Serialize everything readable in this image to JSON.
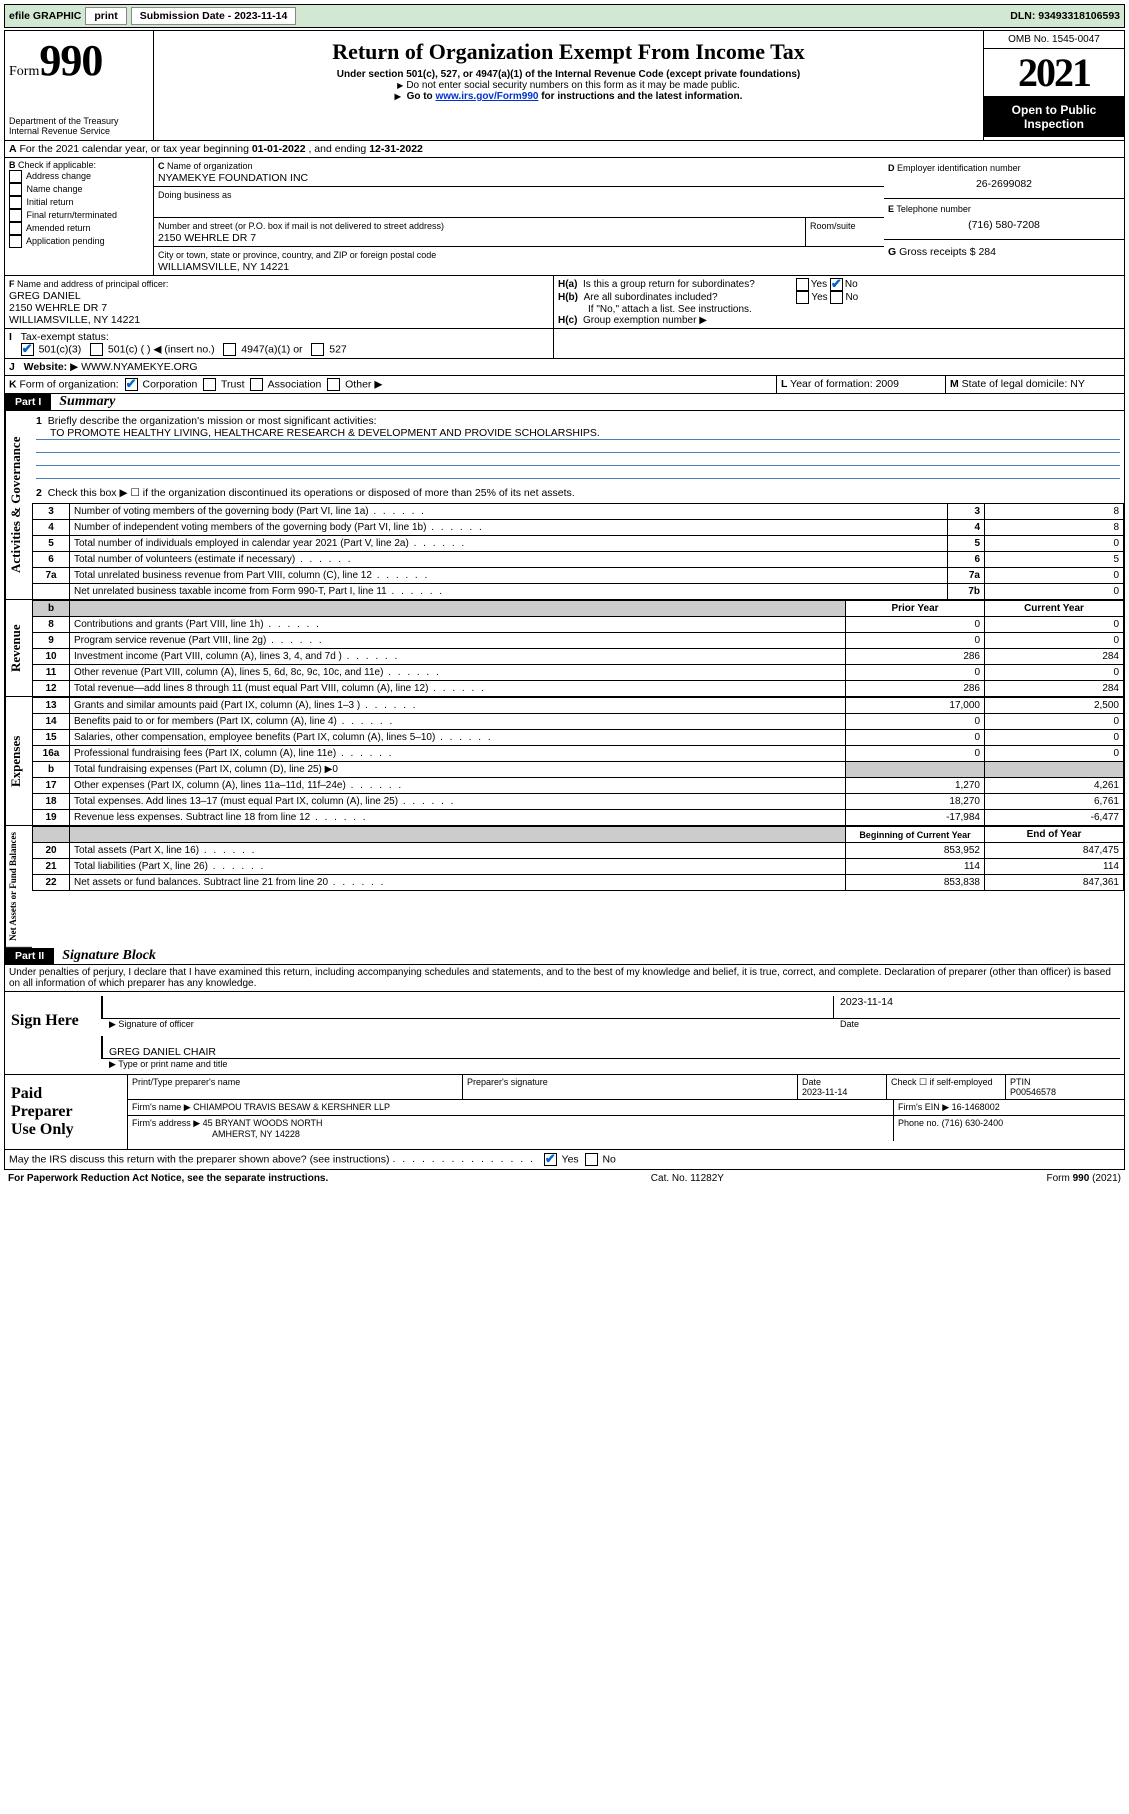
{
  "topbar": {
    "efile": "efile GRAPHIC",
    "print": "print",
    "sub_label": "Submission Date - 2023-11-14",
    "dln": "DLN: 93493318106593"
  },
  "header": {
    "form_word": "Form",
    "form_num": "990",
    "dept": "Department of the Treasury",
    "irs": "Internal Revenue Service",
    "title": "Return of Organization Exempt From Income Tax",
    "sub1": "Under section 501(c), 527, or 4947(a)(1) of the Internal Revenue Code (except private foundations)",
    "sub2": "Do not enter social security numbers on this form as it may be made public.",
    "sub3_pre": "Go to ",
    "sub3_link": "www.irs.gov/Form990",
    "sub3_post": " for instructions and the latest information.",
    "omb": "OMB No. 1545-0047",
    "year": "2021",
    "inspect1": "Open to Public",
    "inspect2": "Inspection"
  },
  "A": {
    "text_pre": "For the 2021 calendar year, or tax year beginning ",
    "begin": "01-01-2022",
    "mid": " , and ending ",
    "end": "12-31-2022"
  },
  "B": {
    "label": "Check if applicable:",
    "items": [
      "Address change",
      "Name change",
      "Initial return",
      "Final return/terminated",
      "Amended return",
      "Application pending"
    ]
  },
  "C": {
    "name_lbl": "Name of organization",
    "name": "NYAMEKYE FOUNDATION INC",
    "dba_lbl": "Doing business as",
    "street_lbl": "Number and street (or P.O. box if mail is not delivered to street address)",
    "room_lbl": "Room/suite",
    "street": "2150 WEHRLE DR 7",
    "city_lbl": "City or town, state or province, country, and ZIP or foreign postal code",
    "city": "WILLIAMSVILLE, NY  14221"
  },
  "D": {
    "lbl": "Employer identification number",
    "val": "26-2699082"
  },
  "E": {
    "lbl": "Telephone number",
    "val": "(716) 580-7208"
  },
  "G": {
    "lbl": "Gross receipts $",
    "val": "284"
  },
  "F": {
    "lbl": "Name and address of principal officer:",
    "name": "GREG DANIEL",
    "street": "2150 WEHRLE DR 7",
    "city": "WILLIAMSVILLE, NY  14221"
  },
  "H": {
    "a": "Is this a group return for subordinates?",
    "b": "Are all subordinates included?",
    "note": "If \"No,\" attach a list. See instructions.",
    "c": "Group exemption number"
  },
  "I": {
    "lbl": "Tax-exempt status:",
    "opts": [
      "501(c)(3)",
      "501(c) (  ) ◀ (insert no.)",
      "4947(a)(1) or",
      "527"
    ]
  },
  "J": {
    "lbl": "Website:",
    "val": "WWW.NYAMEKYE.ORG"
  },
  "K": {
    "lbl": "Form of organization:",
    "corp": "Corporation",
    "trust": "Trust",
    "assoc": "Association",
    "other": "Other"
  },
  "L": {
    "lbl": "Year of formation:",
    "val": "2009"
  },
  "M": {
    "lbl": "State of legal domicile:",
    "val": "NY"
  },
  "partI": {
    "hdr": "Part I",
    "title": "Summary",
    "q1_lbl": "Briefly describe the organization's mission or most significant activities:",
    "q1_val": "TO PROMOTE HEALTHY LIVING, HEALTHCARE RESEARCH & DEVELOPMENT AND PROVIDE SCHOLARSHIPS.",
    "q2": "Check this box ▶ ☐  if the organization discontinued its operations or disposed of more than 25% of its net assets.",
    "gov_rows": [
      {
        "n": "3",
        "t": "Number of voting members of the governing body (Part VI, line 1a)",
        "l": "3",
        "v": "8"
      },
      {
        "n": "4",
        "t": "Number of independent voting members of the governing body (Part VI, line 1b)",
        "l": "4",
        "v": "8"
      },
      {
        "n": "5",
        "t": "Total number of individuals employed in calendar year 2021 (Part V, line 2a)",
        "l": "5",
        "v": "0"
      },
      {
        "n": "6",
        "t": "Total number of volunteers (estimate if necessary)",
        "l": "6",
        "v": "5"
      },
      {
        "n": "7a",
        "t": "Total unrelated business revenue from Part VIII, column (C), line 12",
        "l": "7a",
        "v": "0"
      },
      {
        "n": "",
        "t": "Net unrelated business taxable income from Form 990-T, Part I, line 11",
        "l": "7b",
        "v": "0"
      }
    ],
    "col_prior": "Prior Year",
    "col_current": "Current Year",
    "rev_rows": [
      {
        "n": "8",
        "t": "Contributions and grants (Part VIII, line 1h)",
        "p": "0",
        "c": "0"
      },
      {
        "n": "9",
        "t": "Program service revenue (Part VIII, line 2g)",
        "p": "0",
        "c": "0"
      },
      {
        "n": "10",
        "t": "Investment income (Part VIII, column (A), lines 3, 4, and 7d )",
        "p": "286",
        "c": "284"
      },
      {
        "n": "11",
        "t": "Other revenue (Part VIII, column (A), lines 5, 6d, 8c, 9c, 10c, and 11e)",
        "p": "0",
        "c": "0"
      },
      {
        "n": "12",
        "t": "Total revenue—add lines 8 through 11 (must equal Part VIII, column (A), line 12)",
        "p": "286",
        "c": "284"
      }
    ],
    "exp_rows": [
      {
        "n": "13",
        "t": "Grants and similar amounts paid (Part IX, column (A), lines 1–3 )",
        "p": "17,000",
        "c": "2,500"
      },
      {
        "n": "14",
        "t": "Benefits paid to or for members (Part IX, column (A), line 4)",
        "p": "0",
        "c": "0"
      },
      {
        "n": "15",
        "t": "Salaries, other compensation, employee benefits (Part IX, column (A), lines 5–10)",
        "p": "0",
        "c": "0"
      },
      {
        "n": "16a",
        "t": "Professional fundraising fees (Part IX, column (A), line 11e)",
        "p": "0",
        "c": "0"
      },
      {
        "n": "b",
        "t": "Total fundraising expenses (Part IX, column (D), line 25) ▶0",
        "p": "",
        "c": "",
        "shade": true
      },
      {
        "n": "17",
        "t": "Other expenses (Part IX, column (A), lines 11a–11d, 11f–24e)",
        "p": "1,270",
        "c": "4,261"
      },
      {
        "n": "18",
        "t": "Total expenses. Add lines 13–17 (must equal Part IX, column (A), line 25)",
        "p": "18,270",
        "c": "6,761"
      },
      {
        "n": "19",
        "t": "Revenue less expenses. Subtract line 18 from line 12",
        "p": "-17,984",
        "c": "-6,477"
      }
    ],
    "col_begin": "Beginning of Current Year",
    "col_end": "End of Year",
    "net_rows": [
      {
        "n": "20",
        "t": "Total assets (Part X, line 16)",
        "p": "853,952",
        "c": "847,475"
      },
      {
        "n": "21",
        "t": "Total liabilities (Part X, line 26)",
        "p": "114",
        "c": "114"
      },
      {
        "n": "22",
        "t": "Net assets or fund balances. Subtract line 21 from line 20",
        "p": "853,838",
        "c": "847,361"
      }
    ],
    "side_gov": "Activities & Governance",
    "side_rev": "Revenue",
    "side_exp": "Expenses",
    "side_net": "Net Assets or Fund Balances"
  },
  "partII": {
    "hdr": "Part II",
    "title": "Signature Block",
    "decl": "Under penalties of perjury, I declare that I have examined this return, including accompanying schedules and statements, and to the best of my knowledge and belief, it is true, correct, and complete. Declaration of preparer (other than officer) is based on all information of which preparer has any knowledge."
  },
  "sign": {
    "here_lbl": "Sign Here",
    "sig_lbl": "Signature of officer",
    "date_lbl": "Date",
    "date": "2023-11-14",
    "name": "GREG DANIEL  CHAIR",
    "type_lbl": "Type or print name and title"
  },
  "paid": {
    "lbl1": "Paid",
    "lbl2": "Preparer",
    "lbl3": "Use Only",
    "print_lbl": "Print/Type preparer's name",
    "sig_lbl": "Preparer's signature",
    "date_lbl": "Date",
    "date": "2023-11-14",
    "check_lbl": "Check ☐ if self-employed",
    "ptin_lbl": "PTIN",
    "ptin": "P00546578",
    "firm_name_lbl": "Firm's name   ▶",
    "firm_name": "CHIAMPOU TRAVIS BESAW & KERSHNER LLP",
    "firm_ein_lbl": "Firm's EIN ▶",
    "firm_ein": "16-1468002",
    "firm_addr_lbl": "Firm's address ▶",
    "firm_addr1": "45 BRYANT WOODS NORTH",
    "firm_addr2": "AMHERST, NY  14228",
    "phone_lbl": "Phone no.",
    "phone": "(716) 630-2400"
  },
  "footer": {
    "q": "May the IRS discuss this return with the preparer shown above? (see instructions)",
    "yes": "Yes",
    "no": "No",
    "pra": "For Paperwork Reduction Act Notice, see the separate instructions.",
    "cat": "Cat. No. 11282Y",
    "form": "Form 990 (2021)"
  },
  "yes": "Yes",
  "no": "No"
}
